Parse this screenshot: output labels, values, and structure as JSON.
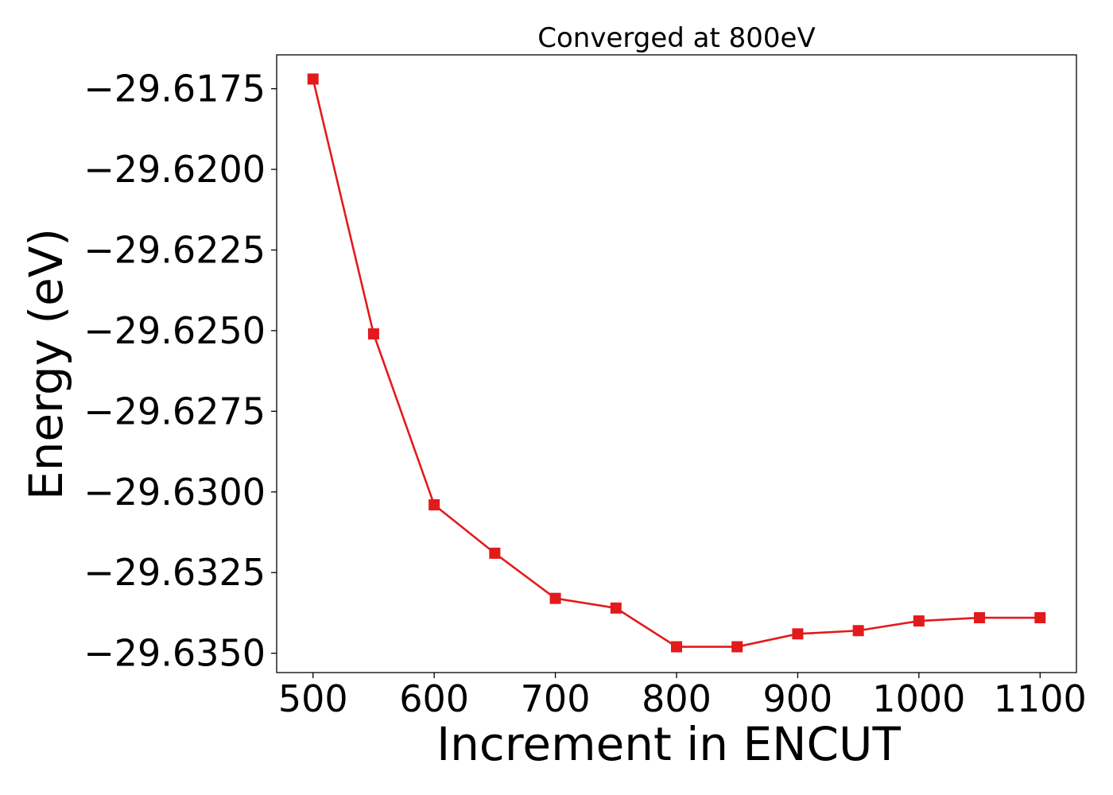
{
  "chart_data": {
    "type": "line",
    "title": "Converged at 800eV",
    "xlabel": "Increment in ENCUT",
    "ylabel": "Energy (eV)",
    "x": [
      500,
      550,
      600,
      650,
      700,
      750,
      800,
      850,
      900,
      950,
      1000,
      1050,
      1100
    ],
    "series": [
      {
        "values": [
          -29.6172,
          -29.6251,
          -29.6304,
          -29.6319,
          -29.6333,
          -29.6336,
          -29.6348,
          -29.6348,
          -29.6344,
          -29.6343,
          -29.634,
          -29.6339,
          -29.6339
        ],
        "color": "#e31a1c",
        "marker": "square"
      }
    ],
    "xticks": [
      500,
      600,
      700,
      800,
      900,
      1000,
      1100
    ],
    "xtick_labels": [
      "500",
      "600",
      "700",
      "800",
      "900",
      "1000",
      "1100"
    ],
    "yticks": [
      -29.6175,
      -29.62,
      -29.6225,
      -29.625,
      -29.6275,
      -29.63,
      -29.6325,
      -29.635
    ],
    "ytick_labels": [
      "−29.6175",
      "−29.6200",
      "−29.6225",
      "−29.6250",
      "−29.6275",
      "−29.6300",
      "−29.6325",
      "−29.6350"
    ],
    "xlim": [
      470,
      1130
    ],
    "ylim": [
      -29.6356,
      -29.61645
    ],
    "grid": false
  }
}
